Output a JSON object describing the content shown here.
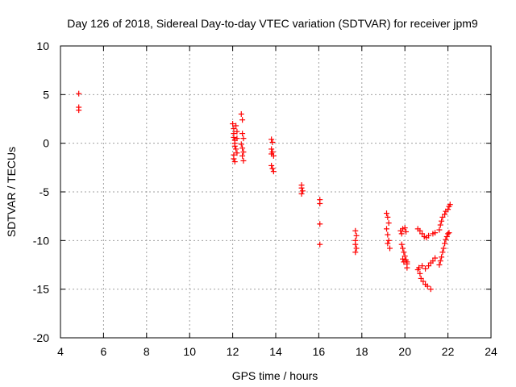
{
  "chart_data": {
    "type": "scatter",
    "title": "Day 126 of 2018, Sidereal Day-to-day VTEC variation (SDTVAR) for receiver jpm9",
    "xlabel": "GPS time / hours",
    "ylabel": "SDTVAR / TECUs",
    "xlim": [
      4,
      24
    ],
    "ylim": [
      -20,
      10
    ],
    "xticks": [
      4,
      6,
      8,
      10,
      12,
      14,
      16,
      18,
      20,
      22,
      24
    ],
    "yticks": [
      -20,
      -15,
      -10,
      -5,
      0,
      5,
      10
    ],
    "grid": true,
    "marker": "plus",
    "marker_color": "#ff0000",
    "series": [
      {
        "name": "jpm9",
        "points": [
          [
            4.85,
            5.1
          ],
          [
            4.85,
            3.7
          ],
          [
            4.85,
            3.4
          ],
          [
            12.0,
            2.0
          ],
          [
            12.05,
            1.5
          ],
          [
            12.05,
            1.0
          ],
          [
            12.05,
            0.6
          ],
          [
            12.1,
            0.3
          ],
          [
            12.1,
            0.0
          ],
          [
            12.1,
            -0.3
          ],
          [
            12.05,
            -1.2
          ],
          [
            12.05,
            -1.6
          ],
          [
            12.1,
            -1.9
          ],
          [
            12.15,
            1.8
          ],
          [
            12.2,
            1.2
          ],
          [
            12.2,
            0.5
          ],
          [
            12.15,
            -0.6
          ],
          [
            12.2,
            -1.0
          ],
          [
            12.4,
            3.0
          ],
          [
            12.45,
            2.4
          ],
          [
            12.45,
            1.0
          ],
          [
            12.5,
            0.5
          ],
          [
            12.4,
            -0.1
          ],
          [
            12.45,
            -0.5
          ],
          [
            12.5,
            -0.9
          ],
          [
            12.45,
            -1.3
          ],
          [
            12.5,
            -1.8
          ],
          [
            13.8,
            0.4
          ],
          [
            13.85,
            0.1
          ],
          [
            13.8,
            -0.6
          ],
          [
            13.85,
            -0.9
          ],
          [
            13.8,
            -1.1
          ],
          [
            13.9,
            -1.3
          ],
          [
            13.8,
            -2.3
          ],
          [
            13.85,
            -2.6
          ],
          [
            13.9,
            -2.9
          ],
          [
            15.2,
            -4.3
          ],
          [
            15.2,
            -4.6
          ],
          [
            15.25,
            -4.9
          ],
          [
            15.2,
            -5.2
          ],
          [
            16.05,
            -5.8
          ],
          [
            16.05,
            -6.2
          ],
          [
            16.05,
            -8.3
          ],
          [
            16.05,
            -10.4
          ],
          [
            17.7,
            -9.0
          ],
          [
            17.75,
            -9.5
          ],
          [
            17.7,
            -10.0
          ],
          [
            17.7,
            -10.4
          ],
          [
            17.75,
            -10.8
          ],
          [
            17.7,
            -11.2
          ],
          [
            19.15,
            -7.2
          ],
          [
            19.2,
            -7.6
          ],
          [
            19.25,
            -8.2
          ],
          [
            19.15,
            -8.8
          ],
          [
            19.2,
            -9.4
          ],
          [
            19.25,
            -10.0
          ],
          [
            19.2,
            -10.3
          ],
          [
            19.3,
            -10.8
          ],
          [
            19.8,
            -9.0
          ],
          [
            19.85,
            -9.3
          ],
          [
            19.9,
            -8.8
          ],
          [
            20.0,
            -8.7
          ],
          [
            20.05,
            -9.1
          ],
          [
            19.85,
            -10.4
          ],
          [
            19.9,
            -10.8
          ],
          [
            19.95,
            -11.2
          ],
          [
            20.0,
            -11.6
          ],
          [
            20.05,
            -12.0
          ],
          [
            20.1,
            -12.4
          ],
          [
            20.1,
            -12.8
          ],
          [
            20.1,
            -12.2
          ],
          [
            19.9,
            -11.9
          ],
          [
            19.95,
            -12.2
          ],
          [
            20.6,
            -8.8
          ],
          [
            20.7,
            -9.0
          ],
          [
            20.8,
            -9.3
          ],
          [
            20.9,
            -9.6
          ],
          [
            21.0,
            -9.7
          ],
          [
            21.1,
            -9.5
          ],
          [
            21.3,
            -9.3
          ],
          [
            21.4,
            -9.2
          ],
          [
            20.6,
            -13.0
          ],
          [
            20.7,
            -13.4
          ],
          [
            20.75,
            -13.9
          ],
          [
            20.85,
            -14.2
          ],
          [
            20.95,
            -14.5
          ],
          [
            21.05,
            -14.7
          ],
          [
            21.2,
            -15.0
          ],
          [
            20.65,
            -12.8
          ],
          [
            20.8,
            -12.6
          ],
          [
            20.95,
            -12.9
          ],
          [
            21.1,
            -12.6
          ],
          [
            21.2,
            -12.3
          ],
          [
            21.3,
            -12.1
          ],
          [
            21.4,
            -11.8
          ],
          [
            21.6,
            -12.5
          ],
          [
            21.65,
            -12.1
          ],
          [
            21.7,
            -11.7
          ],
          [
            21.75,
            -11.2
          ],
          [
            21.8,
            -10.8
          ],
          [
            21.85,
            -10.3
          ],
          [
            21.9,
            -9.9
          ],
          [
            21.95,
            -9.6
          ],
          [
            22.0,
            -9.3
          ],
          [
            22.05,
            -9.2
          ],
          [
            21.6,
            -8.9
          ],
          [
            21.65,
            -8.4
          ],
          [
            21.7,
            -8.0
          ],
          [
            21.75,
            -7.6
          ],
          [
            21.85,
            -7.3
          ],
          [
            21.9,
            -7.0
          ],
          [
            22.0,
            -6.8
          ],
          [
            22.05,
            -6.5
          ],
          [
            22.1,
            -6.3
          ]
        ]
      }
    ]
  }
}
